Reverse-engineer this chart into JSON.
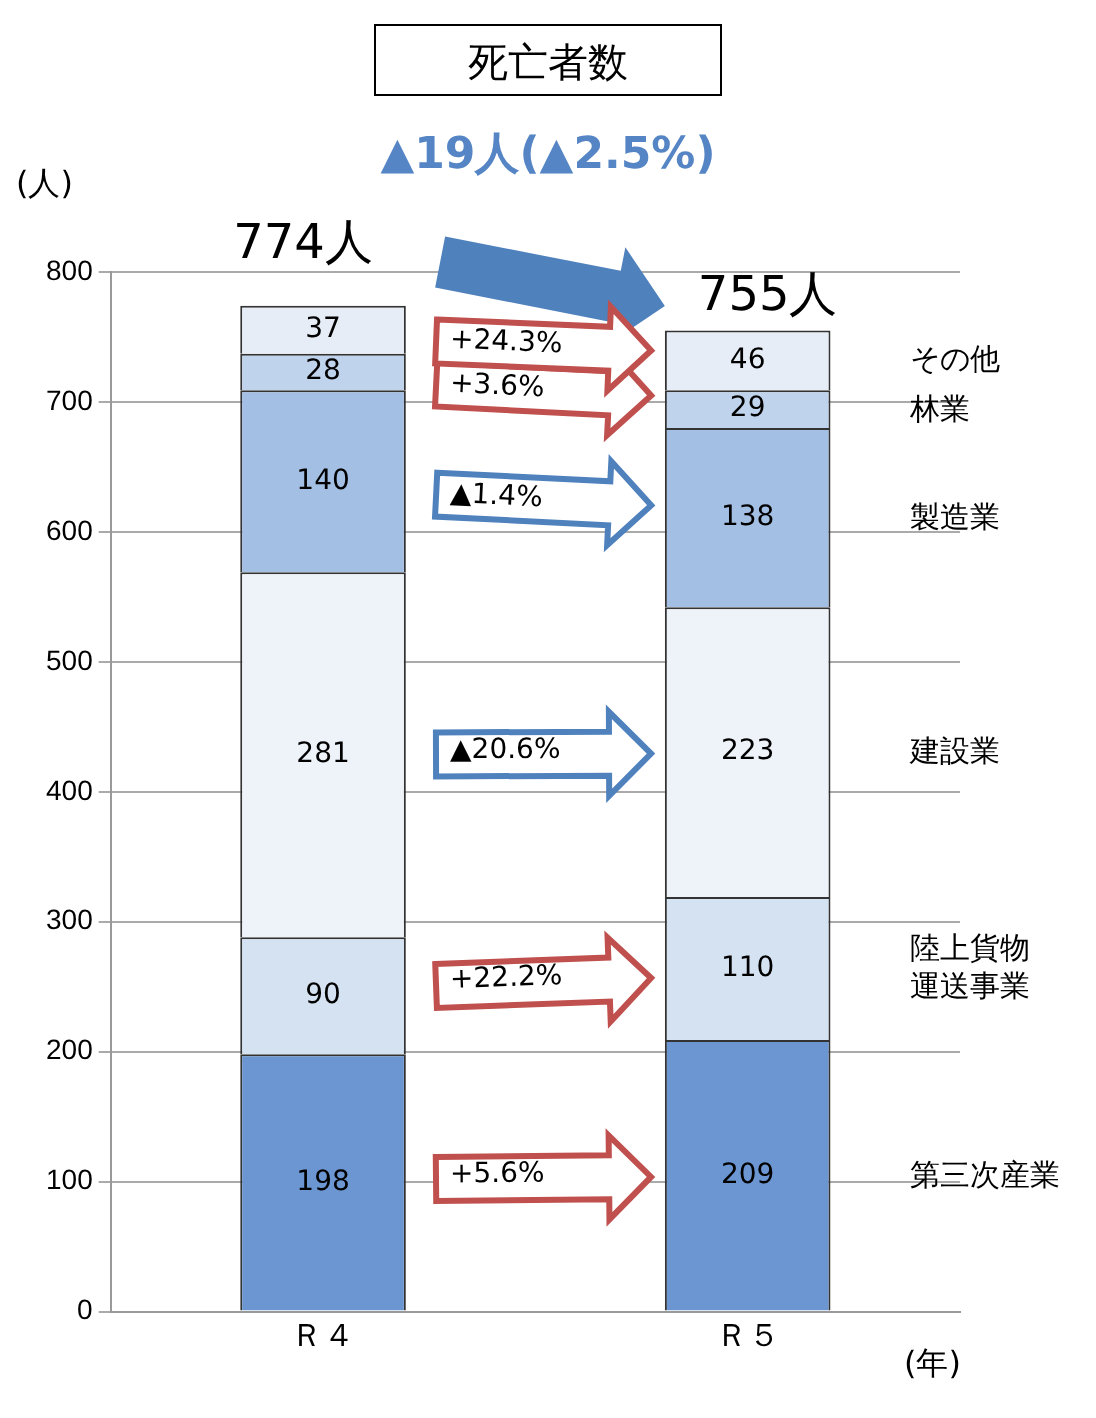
{
  "chart_data": {
    "type": "bar",
    "title": "死亡者数",
    "subtitle": "▲19人(▲2.5%)",
    "ylabel": "(人)",
    "xlabel": "(年)",
    "categories": [
      "Ｒ４",
      "Ｒ５"
    ],
    "stacked": true,
    "series": [
      {
        "name": "第三次産業",
        "color": "#6b96d1",
        "values": [
          198,
          209
        ]
      },
      {
        "name": "陸上貨物運送事業",
        "color": "#d5e2f2",
        "values": [
          90,
          110
        ]
      },
      {
        "name": "建設業",
        "color": "#eef3fa",
        "values": [
          281,
          223
        ]
      },
      {
        "name": "製造業",
        "color": "#a4bfe4",
        "values": [
          140,
          138
        ]
      },
      {
        "name": "林業",
        "color": "#c0d3ec",
        "values": [
          28,
          29
        ]
      },
      {
        "name": "その他",
        "color": "#e6edf7",
        "values": [
          37,
          46
        ]
      }
    ],
    "ylim": [
      0,
      800
    ],
    "yticks": [
      0,
      100,
      200,
      300,
      400,
      500,
      600,
      700,
      800
    ],
    "grid": "y",
    "legend": false,
    "data_labels": true,
    "totals": [
      "774人",
      "755人"
    ],
    "annotations": [
      "+5.6%",
      "+22.2%",
      "▲20.6%",
      "▲1.4%",
      "+3.6%",
      "+24.3%"
    ]
  }
}
